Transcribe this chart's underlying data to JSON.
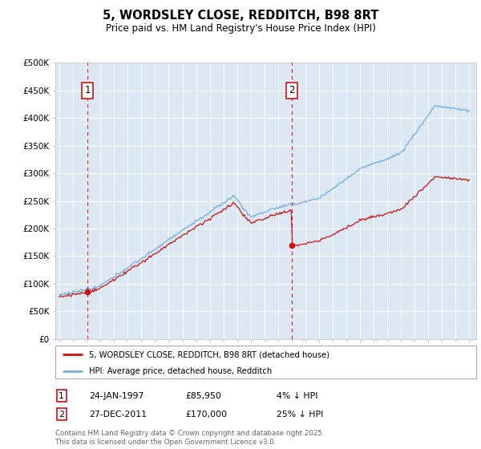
{
  "title": "5, WORDSLEY CLOSE, REDDITCH, B98 8RT",
  "subtitle": "Price paid vs. HM Land Registry's House Price Index (HPI)",
  "ylim": [
    0,
    500000
  ],
  "xlim_start": 1994.7,
  "xlim_end": 2025.5,
  "background_color": "#dce9f5",
  "grid_color": "#ffffff",
  "hpi_line_color": "#7aaedc",
  "price_line_color": "#cc1111",
  "sale1_date": 1997.07,
  "sale1_price": 85950,
  "sale2_date": 2011.99,
  "sale2_price": 170000,
  "legend_label1": "5, WORDSLEY CLOSE, REDDITCH, B98 8RT (detached house)",
  "legend_label2": "HPI: Average price, detached house, Redditch",
  "footer": "Contains HM Land Registry data © Crown copyright and database right 2025.\nThis data is licensed under the Open Government Licence v3.0."
}
